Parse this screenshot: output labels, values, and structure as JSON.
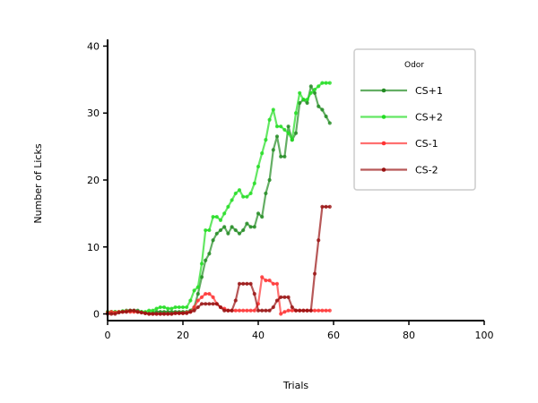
{
  "chart_data": {
    "type": "line",
    "title": "",
    "xlabel": "Trials",
    "ylabel": "Number of Licks",
    "xlim": [
      0,
      100
    ],
    "ylim": [
      -1,
      41
    ],
    "xticks": [
      0,
      20,
      40,
      60,
      80,
      100
    ],
    "yticks": [
      0,
      10,
      20,
      30,
      40
    ],
    "grid": false,
    "legend": {
      "title": "Odor",
      "placement": "top-right"
    },
    "series": [
      {
        "name": "CS+1",
        "color": "#228B22",
        "x": [
          0,
          1,
          2,
          3,
          4,
          5,
          6,
          7,
          8,
          9,
          10,
          11,
          12,
          13,
          14,
          15,
          16,
          17,
          18,
          19,
          20,
          21,
          22,
          23,
          24,
          25,
          26,
          27,
          28,
          29,
          30,
          31,
          32,
          33,
          34,
          35,
          36,
          37,
          38,
          39,
          40,
          41,
          42,
          43,
          44,
          45,
          46,
          47,
          48,
          49,
          50,
          51,
          52,
          53,
          54,
          55,
          56,
          57,
          58,
          59
        ],
        "y": [
          0.3,
          0.3,
          0.3,
          0.3,
          0.4,
          0.5,
          0.5,
          0.5,
          0.5,
          0.3,
          0.1,
          0.1,
          0.2,
          0.3,
          0.3,
          0.3,
          0.3,
          0.3,
          0.3,
          0.3,
          0.3,
          0.3,
          0.5,
          1.0,
          3.0,
          5.5,
          8.0,
          9.0,
          11.0,
          12.0,
          12.5,
          13.0,
          12.0,
          13.0,
          12.5,
          12.0,
          12.5,
          13.5,
          13.0,
          13.0,
          15.0,
          14.5,
          18.0,
          20.0,
          24.5,
          26.5,
          23.5,
          23.5,
          28.0,
          26.0,
          27.0,
          31.5,
          32.0,
          31.5,
          34.0,
          33.0,
          31.0,
          30.5,
          29.5,
          28.5
        ]
      },
      {
        "name": "CS+2",
        "color": "#22DD22",
        "x": [
          0,
          1,
          2,
          3,
          4,
          5,
          6,
          7,
          8,
          9,
          10,
          11,
          12,
          13,
          14,
          15,
          16,
          17,
          18,
          19,
          20,
          21,
          22,
          23,
          24,
          25,
          26,
          27,
          28,
          29,
          30,
          31,
          32,
          33,
          34,
          35,
          36,
          37,
          38,
          39,
          40,
          41,
          42,
          43,
          44,
          45,
          46,
          47,
          48,
          49,
          50,
          51,
          52,
          53,
          54,
          55,
          56,
          57,
          58,
          59
        ],
        "y": [
          0.3,
          0.3,
          0.3,
          0.3,
          0.4,
          0.4,
          0.4,
          0.4,
          0.3,
          0.3,
          0.3,
          0.5,
          0.5,
          0.8,
          1.0,
          1.0,
          0.8,
          0.8,
          1.0,
          1.0,
          1.0,
          1.0,
          2.0,
          3.5,
          4.0,
          7.5,
          12.5,
          12.5,
          14.5,
          14.5,
          14.0,
          15.0,
          16.0,
          17.0,
          18.0,
          18.5,
          17.5,
          17.5,
          18.0,
          19.5,
          22.0,
          24.0,
          26.0,
          29.0,
          30.5,
          28.0,
          28.0,
          27.5,
          27.0,
          26.0,
          30.0,
          33.0,
          32.0,
          32.0,
          33.0,
          33.5,
          34.0,
          34.5,
          34.5,
          34.5
        ]
      },
      {
        "name": "CS-1",
        "color": "#FF3333",
        "x": [
          0,
          1,
          2,
          3,
          4,
          5,
          6,
          7,
          8,
          9,
          10,
          11,
          12,
          13,
          14,
          15,
          16,
          17,
          18,
          19,
          20,
          21,
          22,
          23,
          24,
          25,
          26,
          27,
          28,
          29,
          30,
          31,
          32,
          33,
          34,
          35,
          36,
          37,
          38,
          39,
          40,
          41,
          42,
          43,
          44,
          45,
          46,
          47,
          48,
          49,
          50,
          51,
          52,
          53,
          54,
          55,
          56,
          57,
          58,
          59
        ],
        "y": [
          0.2,
          0.3,
          0.2,
          0.3,
          0.3,
          0.4,
          0.3,
          0.3,
          0.3,
          0.2,
          0.1,
          0.0,
          0.0,
          0.0,
          0.0,
          0.0,
          0.0,
          0.0,
          0.1,
          0.1,
          0.1,
          0.2,
          0.3,
          1.0,
          2.0,
          2.5,
          3.0,
          3.0,
          2.5,
          1.5,
          1.0,
          0.8,
          0.5,
          0.5,
          0.5,
          0.5,
          0.5,
          0.5,
          0.5,
          0.5,
          1.5,
          5.5,
          5.0,
          5.0,
          4.5,
          4.5,
          0.0,
          0.3,
          0.5,
          0.5,
          0.5,
          0.5,
          0.5,
          0.5,
          0.5,
          0.5,
          0.5,
          0.5,
          0.5,
          0.5
        ]
      },
      {
        "name": "CS-2",
        "color": "#991111",
        "x": [
          0,
          1,
          2,
          3,
          4,
          5,
          6,
          7,
          8,
          9,
          10,
          11,
          12,
          13,
          14,
          15,
          16,
          17,
          18,
          19,
          20,
          21,
          22,
          23,
          24,
          25,
          26,
          27,
          28,
          29,
          30,
          31,
          32,
          33,
          34,
          35,
          36,
          37,
          38,
          39,
          40,
          41,
          42,
          43,
          44,
          45,
          46,
          47,
          48,
          49,
          50,
          51,
          52,
          53,
          54,
          55,
          56,
          57,
          58,
          59
        ],
        "y": [
          0.0,
          0.0,
          0.0,
          0.2,
          0.3,
          0.3,
          0.5,
          0.5,
          0.3,
          0.2,
          0.1,
          0.0,
          0.0,
          0.0,
          0.0,
          0.0,
          0.0,
          0.0,
          0.1,
          0.1,
          0.1,
          0.1,
          0.3,
          0.5,
          1.0,
          1.5,
          1.5,
          1.5,
          1.5,
          1.5,
          1.0,
          0.5,
          0.5,
          0.5,
          2.0,
          4.5,
          4.5,
          4.5,
          4.5,
          3.0,
          0.5,
          0.5,
          0.5,
          0.5,
          1.0,
          2.0,
          2.5,
          2.5,
          2.5,
          1.0,
          0.5,
          0.5,
          0.5,
          0.5,
          0.5,
          6.0,
          11.0,
          16.0,
          16.0,
          16.0
        ]
      }
    ]
  }
}
